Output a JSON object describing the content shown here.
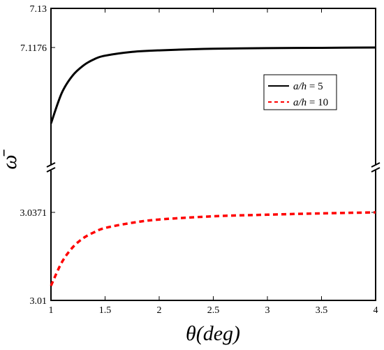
{
  "chart_data": {
    "type": "line",
    "title": "",
    "xlabel": "θ(deg)",
    "ylabel": "ω̄",
    "xlim": [
      1,
      4
    ],
    "xticks": [
      "1",
      "1.5",
      "2",
      "2.5",
      "3",
      "3.5",
      "4"
    ],
    "broken_y_axis": true,
    "upper_panel": {
      "ylim_top": 7.13,
      "yticks": [
        "7.13",
        "7.1176"
      ]
    },
    "lower_panel": {
      "ylim_bottom": 3.01,
      "yticks": [
        "3.0371",
        "3.01"
      ]
    },
    "legend_position": "right",
    "series": [
      {
        "name": "a/h = 5",
        "legend": {
          "italic": "a/h",
          "rest": " = 5"
        },
        "panel": "upper",
        "color": "#000000",
        "style": "solid",
        "x": [
          1,
          1.1,
          1.2,
          1.3,
          1.4,
          1.5,
          1.75,
          2,
          2.5,
          3,
          3.5,
          4
        ],
        "y": [
          7.0935,
          7.1032,
          7.1087,
          7.1119,
          7.1139,
          7.115,
          7.1162,
          7.1167,
          7.1172,
          7.1174,
          7.1175,
          7.1176
        ]
      },
      {
        "name": "a/h = 10",
        "legend": {
          "italic": "a/h",
          "rest": " = 10"
        },
        "panel": "lower",
        "color": "#ff0000",
        "style": "dashed",
        "x": [
          1,
          1.1,
          1.2,
          1.3,
          1.4,
          1.5,
          1.75,
          2,
          2.5,
          3,
          3.5,
          4
        ],
        "y": [
          3.0145,
          3.0217,
          3.0263,
          3.0292,
          3.031,
          3.0323,
          3.0339,
          3.0349,
          3.0359,
          3.0364,
          3.0368,
          3.0371
        ]
      }
    ]
  }
}
